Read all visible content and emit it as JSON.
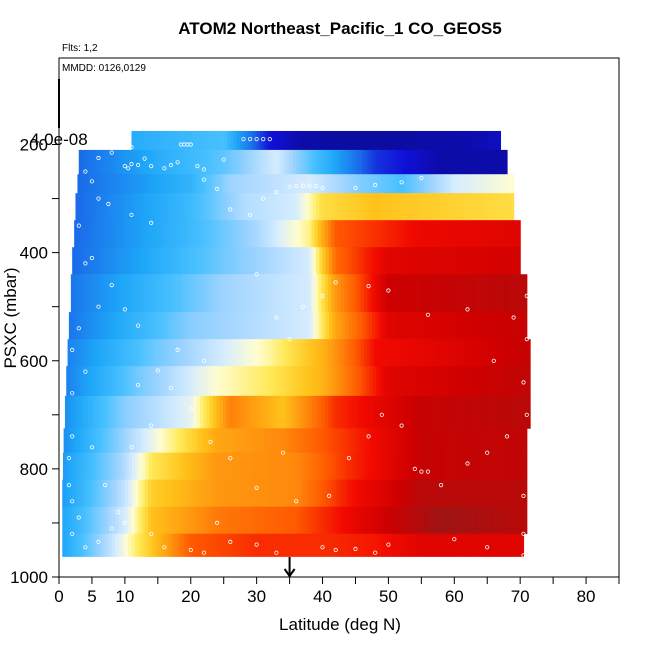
{
  "chart_data": {
    "type": "heatmap",
    "title": "ATOM2 Northeast_Pacific_1 CO_GEOS5",
    "flights_label": "Flts: 1,2",
    "dates_label": "MMDD: 0126,0129",
    "scale_label": "4.0e-08",
    "xlabel": "Latitude (deg N)",
    "ylabel": "PSXC (mbar)",
    "xlim": [
      0,
      85
    ],
    "ylim": [
      1000,
      40
    ],
    "x_ticks": [
      0,
      5,
      10,
      20,
      30,
      40,
      50,
      60,
      70,
      80
    ],
    "x_minor_ticks": [
      15,
      25,
      35,
      45,
      55,
      65,
      75,
      85
    ],
    "y_ticks": [
      200,
      400,
      600,
      800,
      1000
    ],
    "y_minor_ticks": [
      300,
      500,
      700,
      900
    ],
    "arrow_latitude": 35,
    "colormap": [
      "#0a0a8c",
      "#1010d8",
      "#1a6ae8",
      "#1ea6f8",
      "#48c0ff",
      "#9fd4ff",
      "#d6ecff",
      "#fffdd0",
      "#ffea58",
      "#ffc21a",
      "#ff9810",
      "#ff5a00",
      "#f20a00",
      "#cd0000",
      "#a01414",
      "#7010e0"
    ],
    "value_stops": [
      0.0,
      0.08,
      0.18,
      0.28,
      0.36,
      0.44,
      0.5,
      0.55,
      0.6,
      0.66,
      0.72,
      0.8,
      0.87,
      0.93,
      1.0
    ],
    "pressure_rows": [
      {
        "p_top": 175,
        "p_bot": 210,
        "lat_start": 11,
        "lat_end": 67,
        "vals": [
          [
            11,
            0.3
          ],
          [
            25,
            0.36
          ],
          [
            32,
            0.08
          ],
          [
            37,
            0.03
          ],
          [
            46,
            0.02
          ],
          [
            58,
            0.03
          ],
          [
            64,
            0.04
          ],
          [
            67,
            0.06
          ]
        ]
      },
      {
        "p_top": 210,
        "p_bot": 255,
        "lat_start": 3,
        "lat_end": 68,
        "vals": [
          [
            3,
            0.18
          ],
          [
            15,
            0.3
          ],
          [
            25,
            0.38
          ],
          [
            33,
            0.5
          ],
          [
            40,
            0.33
          ],
          [
            48,
            0.12
          ],
          [
            58,
            0.03
          ],
          [
            68,
            0.03
          ]
        ]
      },
      {
        "p_top": 255,
        "p_bot": 290,
        "lat_start": 2.8,
        "lat_end": 69,
        "vals": [
          [
            2.8,
            0.18
          ],
          [
            20,
            0.32
          ],
          [
            26,
            0.44
          ],
          [
            32,
            0.47
          ],
          [
            38,
            0.5
          ],
          [
            45,
            0.42
          ],
          [
            52,
            0.36
          ],
          [
            60,
            0.5
          ],
          [
            69,
            0.55
          ]
        ]
      },
      {
        "p_top": 290,
        "p_bot": 340,
        "lat_start": 2.5,
        "lat_end": 69,
        "vals": [
          [
            2.5,
            0.18
          ],
          [
            20,
            0.34
          ],
          [
            28,
            0.46
          ],
          [
            36,
            0.5
          ],
          [
            40,
            0.62
          ],
          [
            48,
            0.66
          ],
          [
            58,
            0.64
          ],
          [
            69,
            0.62
          ]
        ]
      },
      {
        "p_top": 340,
        "p_bot": 390,
        "lat_start": 2.3,
        "lat_end": 70,
        "vals": [
          [
            2.3,
            0.18
          ],
          [
            20,
            0.34
          ],
          [
            30,
            0.45
          ],
          [
            38,
            0.58
          ],
          [
            42,
            0.8
          ],
          [
            55,
            0.88
          ],
          [
            70,
            0.9
          ]
        ]
      },
      {
        "p_top": 390,
        "p_bot": 440,
        "lat_start": 2,
        "lat_end": 70,
        "vals": [
          [
            2,
            0.18
          ],
          [
            25,
            0.4
          ],
          [
            38,
            0.5
          ],
          [
            42,
            0.78
          ],
          [
            50,
            0.9
          ],
          [
            70,
            0.92
          ]
        ]
      },
      {
        "p_top": 440,
        "p_bot": 510,
        "lat_start": 1.8,
        "lat_end": 71,
        "vals": [
          [
            1.8,
            0.2
          ],
          [
            25,
            0.44
          ],
          [
            38,
            0.5
          ],
          [
            42,
            0.72
          ],
          [
            50,
            0.93
          ],
          [
            71,
            0.96
          ]
        ]
      },
      {
        "p_top": 510,
        "p_bot": 560,
        "lat_start": 1.5,
        "lat_end": 71,
        "vals": [
          [
            1.5,
            0.2
          ],
          [
            20,
            0.42
          ],
          [
            38,
            0.5
          ],
          [
            42,
            0.7
          ],
          [
            50,
            0.9
          ],
          [
            71,
            0.94
          ]
        ]
      },
      {
        "p_top": 560,
        "p_bot": 610,
        "lat_start": 1.3,
        "lat_end": 71.5,
        "vals": [
          [
            1.3,
            0.22
          ],
          [
            15,
            0.4
          ],
          [
            25,
            0.5
          ],
          [
            32,
            0.57
          ],
          [
            40,
            0.68
          ],
          [
            48,
            0.87
          ],
          [
            71.5,
            0.94
          ]
        ]
      },
      {
        "p_top": 610,
        "p_bot": 665,
        "lat_start": 1.1,
        "lat_end": 71.5,
        "vals": [
          [
            1.1,
            0.22
          ],
          [
            12,
            0.4
          ],
          [
            24,
            0.55
          ],
          [
            32,
            0.6
          ],
          [
            40,
            0.68
          ],
          [
            50,
            0.9
          ],
          [
            71.5,
            0.95
          ]
        ]
      },
      {
        "p_top": 665,
        "p_bot": 725,
        "lat_start": 0.9,
        "lat_end": 71.5,
        "vals": [
          [
            0.9,
            0.24
          ],
          [
            10,
            0.42
          ],
          [
            20,
            0.52
          ],
          [
            26,
            0.75
          ],
          [
            34,
            0.66
          ],
          [
            42,
            0.84
          ],
          [
            55,
            0.94
          ],
          [
            71.5,
            0.96
          ]
        ]
      },
      {
        "p_top": 725,
        "p_bot": 770,
        "lat_start": 0.7,
        "lat_end": 71,
        "vals": [
          [
            0.7,
            0.24
          ],
          [
            10,
            0.44
          ],
          [
            16,
            0.56
          ],
          [
            24,
            0.7
          ],
          [
            34,
            0.74
          ],
          [
            42,
            0.82
          ],
          [
            55,
            0.94
          ],
          [
            71,
            0.95
          ]
        ]
      },
      {
        "p_top": 770,
        "p_bot": 820,
        "lat_start": 0.6,
        "lat_end": 71,
        "vals": [
          [
            0.6,
            0.26
          ],
          [
            10,
            0.46
          ],
          [
            14,
            0.6
          ],
          [
            24,
            0.72
          ],
          [
            36,
            0.74
          ],
          [
            44,
            0.84
          ],
          [
            55,
            0.94
          ],
          [
            71,
            0.95
          ]
        ]
      },
      {
        "p_top": 820,
        "p_bot": 870,
        "lat_start": 0.5,
        "lat_end": 71,
        "vals": [
          [
            0.5,
            0.26
          ],
          [
            10,
            0.48
          ],
          [
            14,
            0.64
          ],
          [
            24,
            0.72
          ],
          [
            36,
            0.74
          ],
          [
            44,
            0.86
          ],
          [
            55,
            0.96
          ],
          [
            71,
            0.96
          ]
        ]
      },
      {
        "p_top": 870,
        "p_bot": 920,
        "lat_start": 0.5,
        "lat_end": 71,
        "vals": [
          [
            0.5,
            0.28
          ],
          [
            10,
            0.5
          ],
          [
            14,
            0.66
          ],
          [
            24,
            0.76
          ],
          [
            36,
            0.8
          ],
          [
            44,
            0.88
          ],
          [
            58,
            1.0
          ],
          [
            71,
            0.96
          ]
        ]
      },
      {
        "p_top": 920,
        "p_bot": 962,
        "lat_start": 0.5,
        "lat_end": 70.5,
        "vals": [
          [
            0.5,
            0.28
          ],
          [
            8,
            0.48
          ],
          [
            12,
            0.6
          ],
          [
            20,
            0.8
          ],
          [
            30,
            0.84
          ],
          [
            40,
            0.84
          ],
          [
            48,
            0.86
          ],
          [
            55,
            0.9
          ],
          [
            70.5,
            0.9
          ]
        ]
      }
    ],
    "sample_points": [
      [
        7.5,
        195
      ],
      [
        8,
        215
      ],
      [
        10,
        240
      ],
      [
        10.5,
        244
      ],
      [
        11,
        236
      ],
      [
        12,
        238
      ],
      [
        14,
        240
      ],
      [
        16,
        244
      ],
      [
        17,
        238
      ],
      [
        18,
        233
      ],
      [
        18.5,
        200
      ],
      [
        19,
        200
      ],
      [
        19.5,
        200
      ],
      [
        20,
        200
      ],
      [
        21,
        240
      ],
      [
        22,
        246
      ],
      [
        25,
        228
      ],
      [
        28,
        190
      ],
      [
        29,
        190
      ],
      [
        30,
        190
      ],
      [
        31,
        190
      ],
      [
        32,
        190
      ],
      [
        11,
        205
      ],
      [
        13,
        226
      ],
      [
        6,
        225
      ],
      [
        4,
        250
      ],
      [
        5,
        268
      ],
      [
        6,
        300
      ],
      [
        7.5,
        310
      ],
      [
        11,
        330
      ],
      [
        14,
        345
      ],
      [
        22,
        265
      ],
      [
        24,
        282
      ],
      [
        26,
        320
      ],
      [
        29,
        330
      ],
      [
        31,
        300
      ],
      [
        33,
        288
      ],
      [
        35,
        278
      ],
      [
        36,
        277
      ],
      [
        37,
        276
      ],
      [
        38,
        276
      ],
      [
        39,
        277
      ],
      [
        40,
        280
      ],
      [
        45,
        280
      ],
      [
        48,
        275
      ],
      [
        52,
        270
      ],
      [
        55,
        262
      ],
      [
        3,
        350
      ],
      [
        5,
        410
      ],
      [
        4,
        420
      ],
      [
        8,
        460
      ],
      [
        10,
        505
      ],
      [
        12,
        535
      ],
      [
        6,
        500
      ],
      [
        3,
        540
      ],
      [
        2,
        580
      ],
      [
        4,
        620
      ],
      [
        12,
        645
      ],
      [
        15,
        618
      ],
      [
        18,
        580
      ],
      [
        22,
        600
      ],
      [
        30,
        440
      ],
      [
        33,
        520
      ],
      [
        35,
        560
      ],
      [
        37,
        500
      ],
      [
        40,
        480
      ],
      [
        42,
        455
      ],
      [
        47,
        462
      ],
      [
        50,
        470
      ],
      [
        56,
        515
      ],
      [
        62,
        505
      ],
      [
        66,
        600
      ],
      [
        69,
        520
      ],
      [
        71,
        480
      ],
      [
        71,
        560
      ],
      [
        70.5,
        640
      ],
      [
        71,
        700
      ],
      [
        2,
        660
      ],
      [
        2,
        740
      ],
      [
        1.5,
        780
      ],
      [
        1.5,
        830
      ],
      [
        2,
        860
      ],
      [
        3,
        890
      ],
      [
        5,
        760
      ],
      [
        7,
        830
      ],
      [
        9,
        880
      ],
      [
        11,
        760
      ],
      [
        14,
        720
      ],
      [
        17,
        650
      ],
      [
        20,
        690
      ],
      [
        23,
        750
      ],
      [
        26,
        780
      ],
      [
        30,
        835
      ],
      [
        34,
        770
      ],
      [
        36,
        860
      ],
      [
        41,
        850
      ],
      [
        44,
        780
      ],
      [
        47,
        740
      ],
      [
        49,
        700
      ],
      [
        52,
        720
      ],
      [
        54,
        800
      ],
      [
        55,
        805
      ],
      [
        56,
        805
      ],
      [
        58,
        830
      ],
      [
        62,
        790
      ],
      [
        65,
        770
      ],
      [
        68,
        740
      ],
      [
        70.5,
        850
      ],
      [
        70.5,
        920
      ],
      [
        70.5,
        960
      ],
      [
        2,
        920
      ],
      [
        4,
        945
      ],
      [
        6,
        935
      ],
      [
        8,
        910
      ],
      [
        10,
        900
      ],
      [
        14,
        920
      ],
      [
        16,
        945
      ],
      [
        20,
        950
      ],
      [
        22,
        955
      ],
      [
        24,
        900
      ],
      [
        26,
        935
      ],
      [
        30,
        940
      ],
      [
        33,
        955
      ],
      [
        40,
        945
      ],
      [
        42,
        950
      ],
      [
        45,
        948
      ],
      [
        48,
        955
      ],
      [
        50,
        940
      ],
      [
        60,
        930
      ],
      [
        65,
        945
      ],
      [
        70.5,
        975
      ]
    ]
  }
}
